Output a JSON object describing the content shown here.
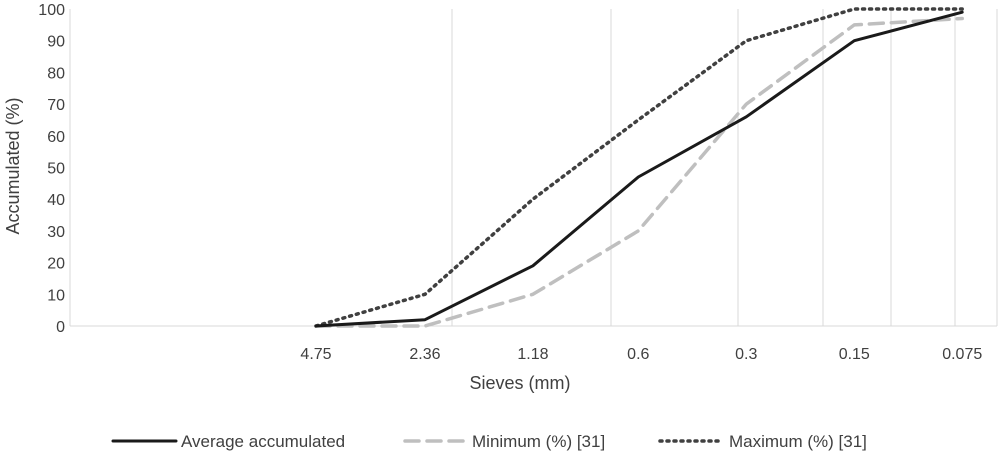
{
  "chart_data": {
    "type": "line",
    "xlabel": "Sieves (mm)",
    "ylabel": "Accumulated (%)",
    "x_scale": "log-reversed",
    "x": [
      4.75,
      2.36,
      1.18,
      0.6,
      0.3,
      0.15,
      0.075
    ],
    "x_tick_labels": [
      "4.75",
      "2.36",
      "1.18",
      "0.6",
      "0.3",
      "0.15",
      "0.075"
    ],
    "ylim": [
      0,
      100
    ],
    "y_ticks": [
      0,
      10,
      20,
      30,
      40,
      50,
      60,
      70,
      80,
      90,
      100
    ],
    "grid": "vertical",
    "legend_position": "bottom",
    "series": [
      {
        "name": "Average accumulated",
        "values": [
          0,
          2,
          19,
          47,
          66,
          90,
          99
        ],
        "color": "#1a1a1a",
        "style": "solid"
      },
      {
        "name": "Minimum (%) [31]",
        "values": [
          0,
          0,
          10,
          30,
          70,
          95,
          97
        ],
        "color": "#bfbfbf",
        "style": "dashed"
      },
      {
        "name": "Maximum (%) [31]",
        "values": [
          0,
          10,
          40,
          65,
          90,
          100,
          100
        ],
        "color": "#404040",
        "style": "dotted"
      }
    ]
  }
}
